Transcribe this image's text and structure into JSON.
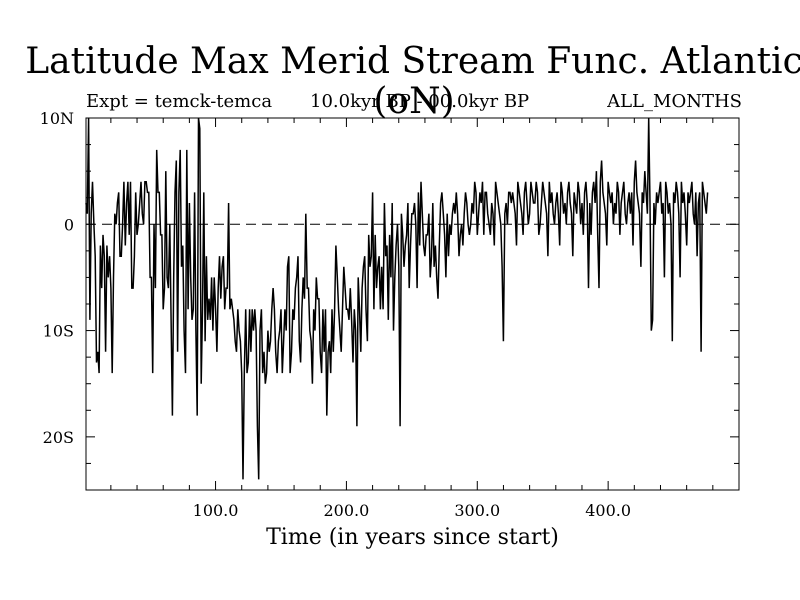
{
  "header": {
    "title": "Latitude Max Merid Stream Func. Atlantic (oN)",
    "expt": "Expt = temck-temca",
    "period": "10.0kyr BP - 00.0kyr BP",
    "months": "ALL_MONTHS"
  },
  "chart_data": {
    "type": "line",
    "title": "Latitude Max Merid Stream Func. Atlantic (oN)",
    "xlabel": "Time (in years since start)",
    "ylabel": "",
    "xlim": [
      1,
      500
    ],
    "ylim": [
      -25,
      10
    ],
    "x_ticks": [
      100,
      200,
      300,
      400
    ],
    "x_tick_labels": [
      "100.0",
      "200.0",
      "300.0",
      "400.0"
    ],
    "y_ticks": [
      10,
      0,
      -10,
      -20
    ],
    "y_tick_labels": [
      "10N",
      "0",
      "10S",
      "20S"
    ],
    "reference_line": {
      "y": 0,
      "style": "dashed"
    },
    "series": [
      {
        "name": "temck-temca",
        "x_start": 1,
        "x_step": 1,
        "values": [
          2,
          1,
          10,
          -9,
          1,
          4,
          0,
          -3,
          -13,
          -12,
          -14,
          -2,
          -6,
          -1,
          -3,
          -12,
          -2,
          -5,
          -3,
          -6,
          -14,
          -5,
          1,
          0,
          2,
          3,
          -3,
          -3,
          0,
          4,
          -2,
          2,
          4,
          -1,
          4,
          -6,
          -6,
          -3,
          3,
          -1,
          0,
          2,
          4,
          1,
          0,
          4,
          4,
          3,
          3,
          -5,
          -5,
          -14,
          0,
          -6,
          7,
          3,
          3,
          -1,
          -1,
          -8,
          -6,
          5,
          -5,
          -6,
          0,
          -9,
          -18,
          -5,
          3,
          6,
          -12,
          3,
          7,
          -4,
          -2,
          -10,
          -14,
          7,
          -8,
          2,
          -5,
          -9,
          -8,
          3,
          -10,
          -18,
          10,
          9,
          -15,
          -8,
          3,
          -11,
          -3,
          -9,
          -7,
          -9,
          -5,
          -10,
          -5,
          -8,
          -12,
          -6,
          -3,
          -7,
          -4,
          -3,
          -8,
          -6,
          -6,
          2,
          -8,
          -7,
          -8,
          -9,
          -11,
          -12,
          -8,
          -10,
          -11,
          -14,
          -24,
          -14,
          -8,
          -14,
          -13,
          -8,
          -12,
          -8,
          -10,
          -8,
          -10,
          -19,
          -24,
          -10,
          -8,
          -14,
          -12,
          -15,
          -14,
          -10,
          -12,
          -11,
          -8,
          -6,
          -8,
          -12,
          -14,
          -11,
          -10,
          -8,
          -14,
          -11,
          -8,
          -10,
          -4,
          -3,
          -14,
          -12,
          -8,
          -9,
          -6,
          -5,
          -3,
          -11,
          -13,
          -8,
          -5,
          -7,
          1,
          -6,
          -6,
          -10,
          -11,
          -15,
          -8,
          -10,
          -5,
          -7,
          -7,
          -12,
          -14,
          -8,
          -12,
          -8,
          -18,
          -12,
          -11,
          -14,
          -8,
          -12,
          -8,
          -2,
          -5,
          -8,
          -10,
          -12,
          -8,
          -4,
          -6,
          -8,
          -8,
          -9,
          -6,
          -9,
          -13,
          -8,
          -10,
          -19,
          -5,
          -8,
          -12,
          -6,
          -4,
          -3,
          -8,
          -11,
          -1,
          -4,
          -3,
          3,
          -8,
          -1,
          -6,
          -4,
          -3,
          -8,
          -4,
          -8,
          2,
          -3,
          -2,
          -9,
          -1,
          -5,
          2,
          -10,
          -5,
          -2,
          0,
          -4,
          -19,
          1,
          -1,
          -4,
          -2,
          -1,
          2,
          -6,
          -2,
          1,
          1,
          2,
          0,
          -6,
          3,
          -2,
          4,
          1,
          -2,
          -3,
          -1,
          -1,
          1,
          -5,
          -3,
          2,
          -4,
          -2,
          -5,
          -7,
          -2,
          2,
          3,
          1,
          -1,
          -5,
          1,
          -3,
          0,
          -1,
          1,
          2,
          1,
          3,
          1,
          -3,
          -1,
          0,
          -2,
          1,
          3,
          2,
          0,
          -1,
          0,
          2,
          1,
          4,
          3,
          -1,
          1,
          3,
          2,
          4,
          -1,
          3,
          3,
          1,
          0,
          -1,
          2,
          1,
          -2,
          4,
          3,
          2,
          1,
          0,
          -4,
          -11,
          1,
          2,
          0,
          3,
          3,
          2,
          3,
          2,
          1,
          -2,
          4,
          3,
          2,
          1,
          -1,
          3,
          4,
          2,
          0,
          1,
          4,
          3,
          2,
          2,
          4,
          3,
          -1,
          0,
          2,
          4,
          3,
          2,
          1,
          -3,
          4,
          2,
          3,
          1,
          0,
          2,
          3,
          1,
          -2,
          4,
          3,
          1,
          2,
          0,
          3,
          4,
          2,
          1,
          -3,
          3,
          2,
          1,
          4,
          3,
          0,
          2,
          -1,
          3,
          4,
          2,
          -6,
          2,
          -1,
          3,
          4,
          2,
          5,
          -1,
          -6,
          4,
          6,
          3,
          2,
          1,
          -2,
          4,
          3,
          2,
          3,
          0,
          2,
          1,
          4,
          3,
          -1,
          2,
          3,
          4,
          1,
          0,
          2,
          3,
          1,
          3,
          -2,
          4,
          6,
          3,
          2,
          1,
          -4,
          3,
          2,
          5,
          3,
          1,
          10,
          2,
          -10,
          -9,
          2,
          0,
          3,
          2,
          3,
          4,
          1,
          2,
          -5,
          4,
          3,
          1,
          2,
          0,
          -11,
          3,
          2,
          4,
          3,
          1,
          -5,
          4,
          2,
          3,
          1,
          -2,
          3,
          2,
          3,
          4,
          1,
          0,
          3,
          -3,
          2,
          3,
          -12,
          4,
          3,
          2,
          1,
          3
        ]
      }
    ]
  }
}
